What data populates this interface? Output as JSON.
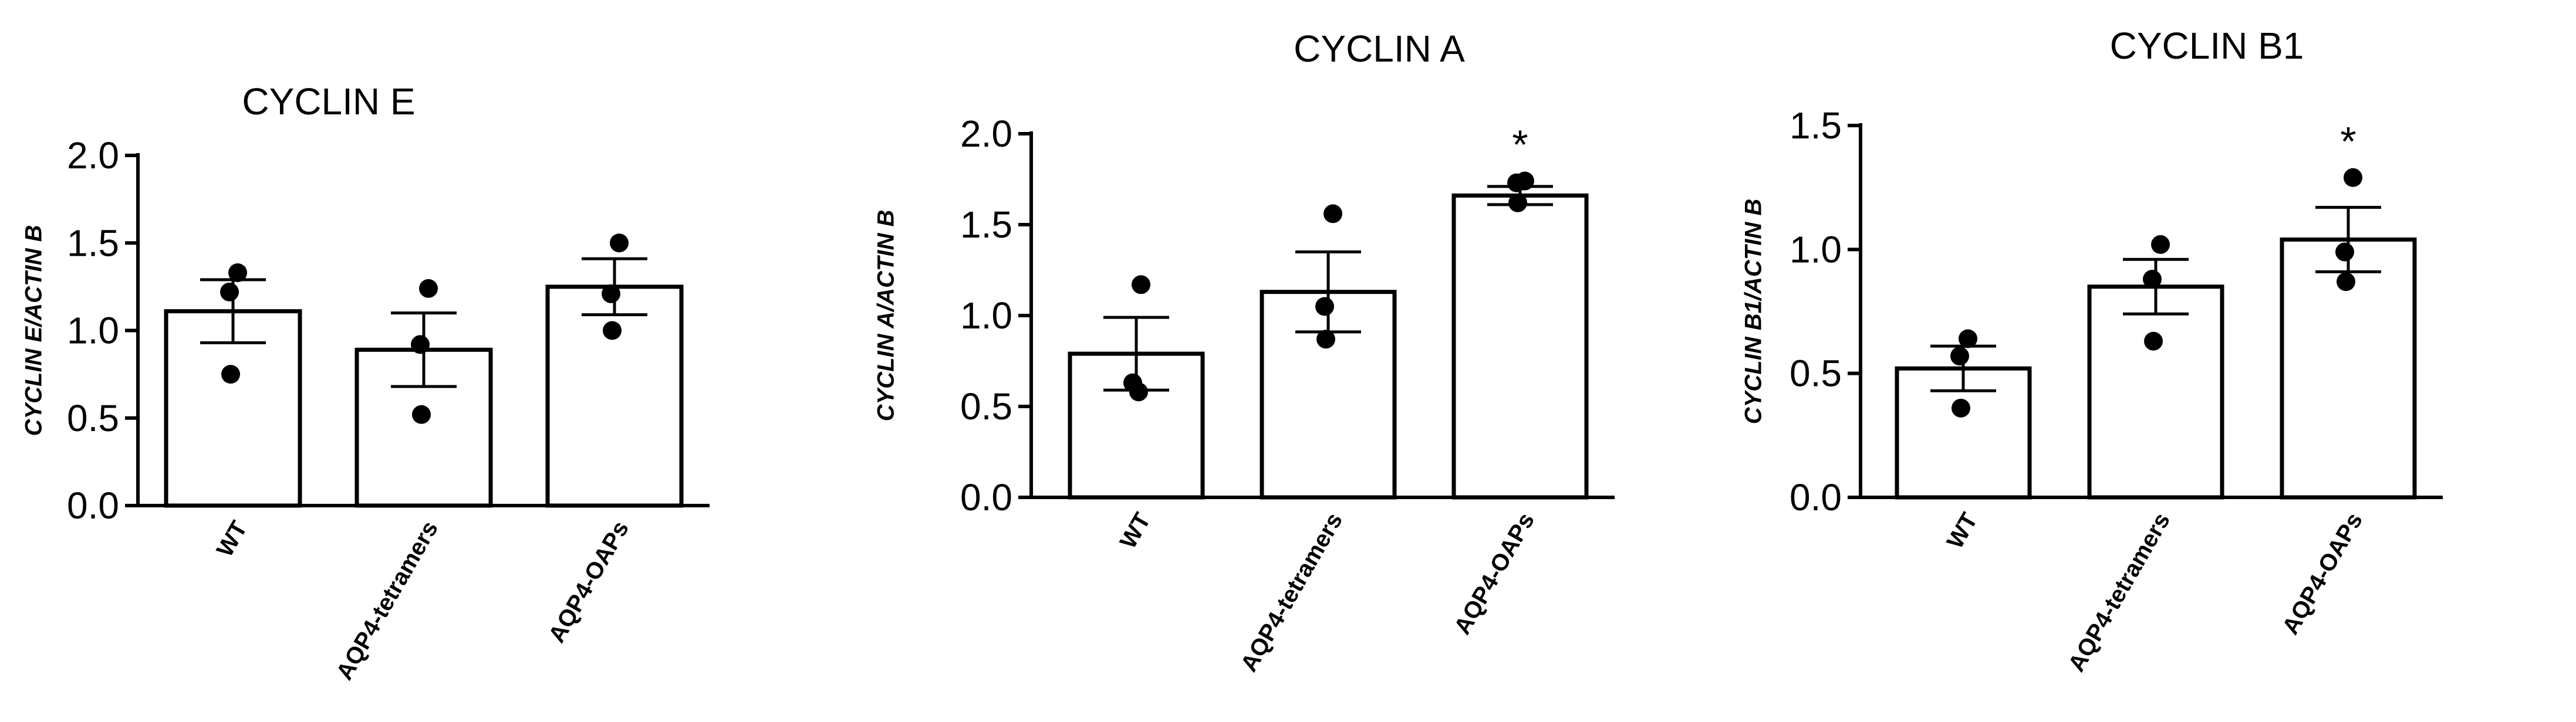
{
  "chart_data": [
    {
      "type": "bar",
      "title": "CYCLIN E",
      "ylabel": "CYCLIN E/ACTIN B",
      "xlabel": "",
      "categories": [
        "WT",
        "AQP4-tetramers",
        "AQP4-OAPs"
      ],
      "values": [
        1.11,
        0.89,
        1.25
      ],
      "errors": [
        0.18,
        0.21,
        0.16
      ],
      "points": [
        [
          1.33,
          1.22,
          0.75
        ],
        [
          1.24,
          0.92,
          0.52
        ],
        [
          1.5,
          1.21,
          1.0
        ]
      ],
      "significance": [
        "",
        "",
        ""
      ],
      "ylim": [
        0,
        2.0
      ],
      "yticks": [
        "0.0",
        "0.5",
        "1.0",
        "1.5",
        "2.0"
      ],
      "ytick_values": [
        0,
        0.5,
        1.0,
        1.5,
        2.0
      ]
    },
    {
      "type": "bar",
      "title": "CYCLIN A",
      "ylabel": "CYCLIN A/ACTIN B",
      "xlabel": "",
      "categories": [
        "WT",
        "AQP4-tetramers",
        "AQP4-OAPs"
      ],
      "values": [
        0.79,
        1.13,
        1.66
      ],
      "errors": [
        0.2,
        0.22,
        0.05
      ],
      "points": [
        [
          1.17,
          0.63,
          0.58
        ],
        [
          1.56,
          1.05,
          0.87
        ],
        [
          1.74,
          1.73,
          1.62
        ]
      ],
      "significance": [
        "",
        "",
        "*"
      ],
      "ylim": [
        0,
        2.0
      ],
      "yticks": [
        "0.0",
        "0.5",
        "1.0",
        "1.5",
        "2.0"
      ],
      "ytick_values": [
        0,
        0.5,
        1.0,
        1.5,
        2.0
      ]
    },
    {
      "type": "bar",
      "title": "CYCLIN B1",
      "ylabel": "CYCLIN B1/ACTIN B",
      "xlabel": "",
      "categories": [
        "WT",
        "AQP4-tetramers",
        "AQP4-OAPs"
      ],
      "values": [
        0.52,
        0.85,
        1.04
      ],
      "errors": [
        0.09,
        0.11,
        0.13
      ],
      "points": [
        [
          0.64,
          0.57,
          0.36
        ],
        [
          1.02,
          0.88,
          0.63
        ],
        [
          1.29,
          0.99,
          0.87
        ]
      ],
      "significance": [
        "",
        "",
        "*"
      ],
      "ylim": [
        0,
        1.5
      ],
      "yticks": [
        "0.0",
        "0.5",
        "1.0",
        "1.5"
      ],
      "ytick_values": [
        0,
        0.5,
        1.0,
        1.5
      ]
    }
  ],
  "colors": {
    "bar_fill": "#ffffff",
    "stroke": "#000000",
    "point": "#000000"
  }
}
